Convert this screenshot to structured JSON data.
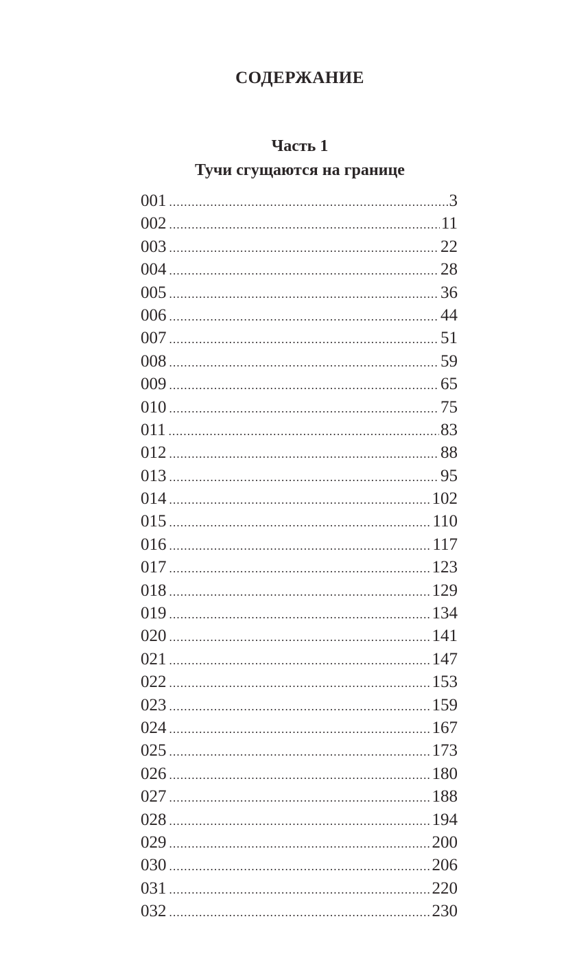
{
  "heading": "СОДЕРЖАНИЕ",
  "part": {
    "label": "Часть 1",
    "title": "Тучи сгущаются на границе"
  },
  "entries": [
    {
      "chapter": "001",
      "page": "3"
    },
    {
      "chapter": "002",
      "page": "11"
    },
    {
      "chapter": "003",
      "page": "22"
    },
    {
      "chapter": "004",
      "page": "28"
    },
    {
      "chapter": "005",
      "page": "36"
    },
    {
      "chapter": "006",
      "page": "44"
    },
    {
      "chapter": "007",
      "page": "51"
    },
    {
      "chapter": "008",
      "page": "59"
    },
    {
      "chapter": "009",
      "page": "65"
    },
    {
      "chapter": "010",
      "page": "75"
    },
    {
      "chapter": "011",
      "page": "83"
    },
    {
      "chapter": "012",
      "page": "88"
    },
    {
      "chapter": "013",
      "page": "95"
    },
    {
      "chapter": "014",
      "page": "102"
    },
    {
      "chapter": "015",
      "page": "110"
    },
    {
      "chapter": "016",
      "page": "117"
    },
    {
      "chapter": "017",
      "page": "123"
    },
    {
      "chapter": "018",
      "page": "129"
    },
    {
      "chapter": "019",
      "page": "134"
    },
    {
      "chapter": "020",
      "page": "141"
    },
    {
      "chapter": "021",
      "page": "147"
    },
    {
      "chapter": "022",
      "page": "153"
    },
    {
      "chapter": "023",
      "page": "159"
    },
    {
      "chapter": "024",
      "page": "167"
    },
    {
      "chapter": "025",
      "page": "173"
    },
    {
      "chapter": "026",
      "page": "180"
    },
    {
      "chapter": "027",
      "page": "188"
    },
    {
      "chapter": "028",
      "page": "194"
    },
    {
      "chapter": "029",
      "page": "200"
    },
    {
      "chapter": "030",
      "page": "206"
    },
    {
      "chapter": "031",
      "page": "220"
    },
    {
      "chapter": "032",
      "page": "230"
    }
  ]
}
